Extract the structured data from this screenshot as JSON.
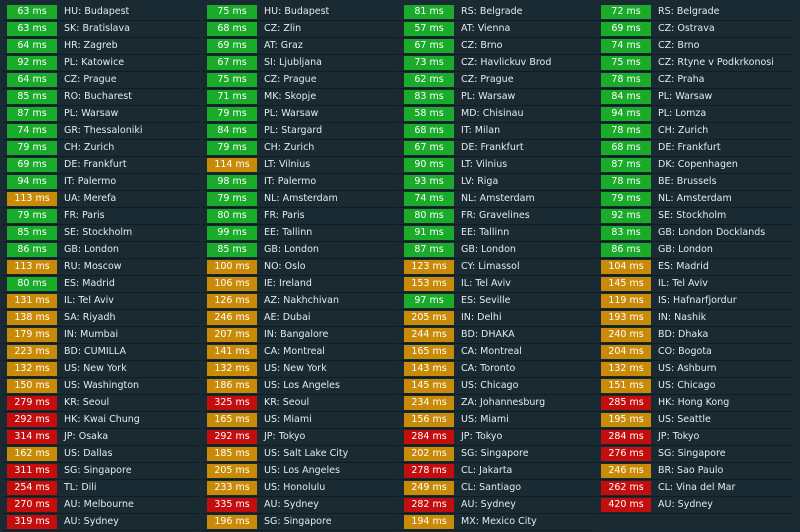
{
  "colors": {
    "good": "#1aab2b",
    "warn": "#c98a07",
    "bad": "#c40e0e",
    "background": "#192a33"
  },
  "columns": [
    [
      {
        "ping": "63 ms",
        "location": "HU: Budapest",
        "status": "good"
      },
      {
        "ping": "63 ms",
        "location": "SK: Bratislava",
        "status": "good"
      },
      {
        "ping": "64 ms",
        "location": "HR: Zagreb",
        "status": "good"
      },
      {
        "ping": "92 ms",
        "location": "PL: Katowice",
        "status": "good"
      },
      {
        "ping": "64 ms",
        "location": "CZ: Prague",
        "status": "good"
      },
      {
        "ping": "85 ms",
        "location": "RO: Bucharest",
        "status": "good"
      },
      {
        "ping": "87 ms",
        "location": "PL: Warsaw",
        "status": "good"
      },
      {
        "ping": "74 ms",
        "location": "GR: Thessaloniki",
        "status": "good"
      },
      {
        "ping": "79 ms",
        "location": "CH: Zurich",
        "status": "good"
      },
      {
        "ping": "69 ms",
        "location": "DE: Frankfurt",
        "status": "good"
      },
      {
        "ping": "94 ms",
        "location": "IT: Palermo",
        "status": "good"
      },
      {
        "ping": "113 ms",
        "location": "UA: Merefa",
        "status": "warn"
      },
      {
        "ping": "79 ms",
        "location": "FR: Paris",
        "status": "good"
      },
      {
        "ping": "85 ms",
        "location": "SE: Stockholm",
        "status": "good"
      },
      {
        "ping": "86 ms",
        "location": "GB: London",
        "status": "good"
      },
      {
        "ping": "113 ms",
        "location": "RU: Moscow",
        "status": "warn"
      },
      {
        "ping": "80 ms",
        "location": "ES: Madrid",
        "status": "good"
      },
      {
        "ping": "131 ms",
        "location": "IL: Tel Aviv",
        "status": "warn"
      },
      {
        "ping": "138 ms",
        "location": "SA: Riyadh",
        "status": "warn"
      },
      {
        "ping": "179 ms",
        "location": "IN: Mumbai",
        "status": "warn"
      },
      {
        "ping": "223 ms",
        "location": "BD: CUMILLA",
        "status": "warn"
      },
      {
        "ping": "132 ms",
        "location": "US: New York",
        "status": "warn"
      },
      {
        "ping": "150 ms",
        "location": "US: Washington",
        "status": "warn"
      },
      {
        "ping": "279 ms",
        "location": "KR: Seoul",
        "status": "bad"
      },
      {
        "ping": "292 ms",
        "location": "HK: Kwai Chung",
        "status": "bad"
      },
      {
        "ping": "314 ms",
        "location": "JP: Osaka",
        "status": "bad"
      },
      {
        "ping": "162 ms",
        "location": "US: Dallas",
        "status": "warn"
      },
      {
        "ping": "311 ms",
        "location": "SG: Singapore",
        "status": "bad"
      },
      {
        "ping": "254 ms",
        "location": "TL: Dili",
        "status": "bad"
      },
      {
        "ping": "270 ms",
        "location": "AU: Melbourne",
        "status": "bad"
      },
      {
        "ping": "319 ms",
        "location": "AU: Sydney",
        "status": "bad"
      }
    ],
    [
      {
        "ping": "75 ms",
        "location": "HU: Budapest",
        "status": "good"
      },
      {
        "ping": "68 ms",
        "location": "CZ: Zlin",
        "status": "good"
      },
      {
        "ping": "69 ms",
        "location": "AT: Graz",
        "status": "good"
      },
      {
        "ping": "67 ms",
        "location": "SI: Ljubljana",
        "status": "good"
      },
      {
        "ping": "75 ms",
        "location": "CZ: Prague",
        "status": "good"
      },
      {
        "ping": "71 ms",
        "location": "MK: Skopje",
        "status": "good"
      },
      {
        "ping": "79 ms",
        "location": "PL: Warsaw",
        "status": "good"
      },
      {
        "ping": "84 ms",
        "location": "PL: Stargard",
        "status": "good"
      },
      {
        "ping": "79 ms",
        "location": "CH: Zurich",
        "status": "good"
      },
      {
        "ping": "114 ms",
        "location": "LT: Vilnius",
        "status": "warn"
      },
      {
        "ping": "98 ms",
        "location": "IT: Palermo",
        "status": "good"
      },
      {
        "ping": "79 ms",
        "location": "NL: Amsterdam",
        "status": "good"
      },
      {
        "ping": "80 ms",
        "location": "FR: Paris",
        "status": "good"
      },
      {
        "ping": "99 ms",
        "location": "EE: Tallinn",
        "status": "good"
      },
      {
        "ping": "85 ms",
        "location": "GB: London",
        "status": "good"
      },
      {
        "ping": "100 ms",
        "location": "NO: Oslo",
        "status": "warn"
      },
      {
        "ping": "106 ms",
        "location": "IE: Ireland",
        "status": "warn"
      },
      {
        "ping": "126 ms",
        "location": "AZ: Nakhchivan",
        "status": "warn"
      },
      {
        "ping": "246 ms",
        "location": "AE: Dubai",
        "status": "warn"
      },
      {
        "ping": "207 ms",
        "location": "IN: Bangalore",
        "status": "warn"
      },
      {
        "ping": "141 ms",
        "location": "CA: Montreal",
        "status": "warn"
      },
      {
        "ping": "132 ms",
        "location": "US: New York",
        "status": "warn"
      },
      {
        "ping": "186 ms",
        "location": "US: Los Angeles",
        "status": "warn"
      },
      {
        "ping": "325 ms",
        "location": "KR: Seoul",
        "status": "bad"
      },
      {
        "ping": "165 ms",
        "location": "US: Miami",
        "status": "warn"
      },
      {
        "ping": "292 ms",
        "location": "JP: Tokyo",
        "status": "bad"
      },
      {
        "ping": "185 ms",
        "location": "US: Salt Lake City",
        "status": "warn"
      },
      {
        "ping": "205 ms",
        "location": "US: Los Angeles",
        "status": "warn"
      },
      {
        "ping": "233 ms",
        "location": "US: Honolulu",
        "status": "warn"
      },
      {
        "ping": "335 ms",
        "location": "AU: Sydney",
        "status": "bad"
      },
      {
        "ping": "196 ms",
        "location": "SG: Singapore",
        "status": "warn"
      }
    ],
    [
      {
        "ping": "81 ms",
        "location": "RS: Belgrade",
        "status": "good"
      },
      {
        "ping": "57 ms",
        "location": "AT: Vienna",
        "status": "good"
      },
      {
        "ping": "67 ms",
        "location": "CZ: Brno",
        "status": "good"
      },
      {
        "ping": "73 ms",
        "location": "CZ: Havlickuv Brod",
        "status": "good"
      },
      {
        "ping": "62 ms",
        "location": "CZ: Prague",
        "status": "good"
      },
      {
        "ping": "83 ms",
        "location": "PL: Warsaw",
        "status": "good"
      },
      {
        "ping": "58 ms",
        "location": "MD: Chisinau",
        "status": "good"
      },
      {
        "ping": "68 ms",
        "location": "IT: Milan",
        "status": "good"
      },
      {
        "ping": "67 ms",
        "location": "DE: Frankfurt",
        "status": "good"
      },
      {
        "ping": "90 ms",
        "location": "LT: Vilnius",
        "status": "good"
      },
      {
        "ping": "93 ms",
        "location": "LV: Riga",
        "status": "good"
      },
      {
        "ping": "74 ms",
        "location": "NL: Amsterdam",
        "status": "good"
      },
      {
        "ping": "80 ms",
        "location": "FR: Gravelines",
        "status": "good"
      },
      {
        "ping": "91 ms",
        "location": "EE: Tallinn",
        "status": "good"
      },
      {
        "ping": "87 ms",
        "location": "GB: London",
        "status": "good"
      },
      {
        "ping": "123 ms",
        "location": "CY: Limassol",
        "status": "warn"
      },
      {
        "ping": "153 ms",
        "location": "IL: Tel Aviv",
        "status": "warn"
      },
      {
        "ping": "97 ms",
        "location": "ES: Seville",
        "status": "good"
      },
      {
        "ping": "205 ms",
        "location": "IN: Delhi",
        "status": "warn"
      },
      {
        "ping": "244 ms",
        "location": "BD: DHAKA",
        "status": "warn"
      },
      {
        "ping": "165 ms",
        "location": "CA: Montreal",
        "status": "warn"
      },
      {
        "ping": "143 ms",
        "location": "CA: Toronto",
        "status": "warn"
      },
      {
        "ping": "145 ms",
        "location": "US: Chicago",
        "status": "warn"
      },
      {
        "ping": "234 ms",
        "location": "ZA: Johannesburg",
        "status": "warn"
      },
      {
        "ping": "156 ms",
        "location": "US: Miami",
        "status": "warn"
      },
      {
        "ping": "284 ms",
        "location": "JP: Tokyo",
        "status": "bad"
      },
      {
        "ping": "202 ms",
        "location": "SG: Singapore",
        "status": "warn"
      },
      {
        "ping": "278 ms",
        "location": "CL: Jakarta",
        "status": "bad"
      },
      {
        "ping": "249 ms",
        "location": "CL: Santiago",
        "status": "warn"
      },
      {
        "ping": "282 ms",
        "location": "AU: Sydney",
        "status": "bad"
      },
      {
        "ping": "194 ms",
        "location": "MX: Mexico City",
        "status": "warn"
      }
    ],
    [
      {
        "ping": "72 ms",
        "location": "RS: Belgrade",
        "status": "good"
      },
      {
        "ping": "69 ms",
        "location": "CZ: Ostrava",
        "status": "good"
      },
      {
        "ping": "74 ms",
        "location": "CZ: Brno",
        "status": "good"
      },
      {
        "ping": "75 ms",
        "location": "CZ: Rtyne v Podkrkonosi",
        "status": "good"
      },
      {
        "ping": "78 ms",
        "location": "CZ: Praha",
        "status": "good"
      },
      {
        "ping": "84 ms",
        "location": "PL: Warsaw",
        "status": "good"
      },
      {
        "ping": "94 ms",
        "location": "PL: Lomza",
        "status": "good"
      },
      {
        "ping": "78 ms",
        "location": "CH: Zurich",
        "status": "good"
      },
      {
        "ping": "68 ms",
        "location": "DE: Frankfurt",
        "status": "good"
      },
      {
        "ping": "87 ms",
        "location": "DK: Copenhagen",
        "status": "good"
      },
      {
        "ping": "78 ms",
        "location": "BE: Brussels",
        "status": "good"
      },
      {
        "ping": "79 ms",
        "location": "NL: Amsterdam",
        "status": "good"
      },
      {
        "ping": "92 ms",
        "location": "SE: Stockholm",
        "status": "good"
      },
      {
        "ping": "83 ms",
        "location": "GB: London Docklands",
        "status": "good"
      },
      {
        "ping": "86 ms",
        "location": "GB: London",
        "status": "good"
      },
      {
        "ping": "104 ms",
        "location": "ES: Madrid",
        "status": "warn"
      },
      {
        "ping": "145 ms",
        "location": "IL: Tel Aviv",
        "status": "warn"
      },
      {
        "ping": "119 ms",
        "location": "IS: Hafnarfjordur",
        "status": "warn"
      },
      {
        "ping": "193 ms",
        "location": "IN: Nashik",
        "status": "warn"
      },
      {
        "ping": "240 ms",
        "location": "BD: Dhaka",
        "status": "warn"
      },
      {
        "ping": "204 ms",
        "location": "CO: Bogota",
        "status": "warn"
      },
      {
        "ping": "132 ms",
        "location": "US: Ashburn",
        "status": "warn"
      },
      {
        "ping": "151 ms",
        "location": "US: Chicago",
        "status": "warn"
      },
      {
        "ping": "285 ms",
        "location": "HK: Hong Kong",
        "status": "bad"
      },
      {
        "ping": "195 ms",
        "location": "US: Seattle",
        "status": "warn"
      },
      {
        "ping": "284 ms",
        "location": "JP: Tokyo",
        "status": "bad"
      },
      {
        "ping": "276 ms",
        "location": "SG: Singapore",
        "status": "bad"
      },
      {
        "ping": "246 ms",
        "location": "BR: Sao Paulo",
        "status": "warn"
      },
      {
        "ping": "262 ms",
        "location": "CL: Vina del Mar",
        "status": "bad"
      },
      {
        "ping": "420 ms",
        "location": "AU: Sydney",
        "status": "bad"
      }
    ]
  ]
}
